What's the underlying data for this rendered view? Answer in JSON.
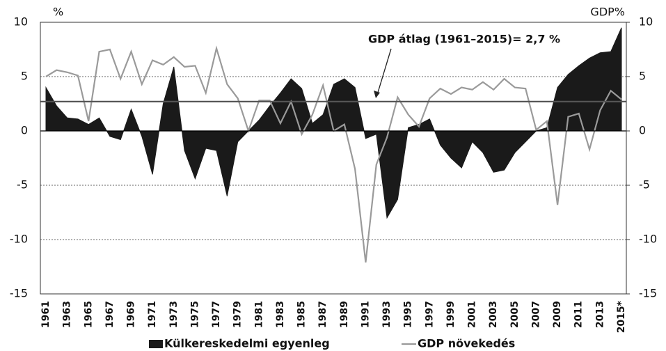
{
  "chart_data": {
    "type": "area-line",
    "y_unit_label": "%",
    "y2_unit_label": "GDP%",
    "annotation": {
      "value": 2.7,
      "label": "GDP átlag (1961–2015)= 2,7 %"
    },
    "categories": [
      "1961",
      null,
      "1963",
      null,
      "1965",
      null,
      "1967",
      null,
      "1969",
      null,
      "1971",
      null,
      "1973",
      null,
      "1975",
      null,
      "1977",
      null,
      "1979",
      null,
      "1981",
      null,
      "1983",
      null,
      "1985",
      null,
      "1987",
      null,
      "1989",
      null,
      "1991",
      null,
      "1993",
      null,
      "1995",
      null,
      "1997",
      null,
      "1999",
      null,
      "2001",
      null,
      "2003",
      null,
      "2005",
      null,
      "2007",
      null,
      "2009",
      null,
      "2011",
      null,
      "2013",
      null,
      "2015*"
    ],
    "series": [
      {
        "name": "Külkereskedelmi egyenleg",
        "color": "#1a1a1a",
        "kind": "area",
        "axis": "y",
        "values": [
          4.0,
          2.3,
          1.2,
          1.1,
          0.6,
          1.2,
          -0.5,
          -0.8,
          2.0,
          -0.5,
          -4.0,
          2.5,
          5.9,
          -1.8,
          -4.4,
          -1.6,
          -1.8,
          -6.0,
          -1.0,
          0.0,
          1.0,
          2.3,
          3.5,
          4.8,
          3.9,
          0.7,
          1.5,
          4.3,
          4.8,
          4.0,
          -0.7,
          -0.3,
          -8.0,
          -6.3,
          0.3,
          0.6,
          1.1,
          -1.3,
          -2.5,
          -3.4,
          -1.0,
          -2.0,
          -3.8,
          -3.6,
          -2.0,
          -1.0,
          0.0,
          0.3,
          4.0,
          5.2,
          6.0,
          6.7,
          7.2,
          7.3,
          9.5
        ]
      },
      {
        "name": "GDP növekedés",
        "color": "#9a9a9a",
        "kind": "line",
        "axis": "y2",
        "values": [
          5.0,
          5.6,
          5.4,
          5.1,
          0.9,
          7.3,
          7.5,
          4.8,
          7.3,
          4.3,
          6.5,
          6.1,
          6.8,
          5.9,
          6.0,
          3.5,
          7.6,
          4.3,
          3.0,
          0.0,
          2.8,
          2.8,
          0.7,
          2.7,
          -0.3,
          1.5,
          4.2,
          0.0,
          0.6,
          -3.5,
          -12.1,
          -3.1,
          -0.6,
          3.1,
          1.5,
          0.4,
          3.0,
          3.9,
          3.4,
          4.0,
          3.8,
          4.5,
          3.8,
          4.8,
          4.0,
          3.9,
          0.1,
          0.9,
          -6.8,
          1.3,
          1.6,
          -1.7,
          1.9,
          3.7,
          2.9
        ]
      }
    ],
    "ylim": [
      -15,
      10
    ],
    "yticks": [
      -15,
      -10,
      -5,
      0,
      5,
      10
    ],
    "y2lim": [
      -15,
      10
    ],
    "y2ticks": [
      -15,
      -10,
      -5,
      0,
      5,
      10
    ],
    "grid": true
  }
}
